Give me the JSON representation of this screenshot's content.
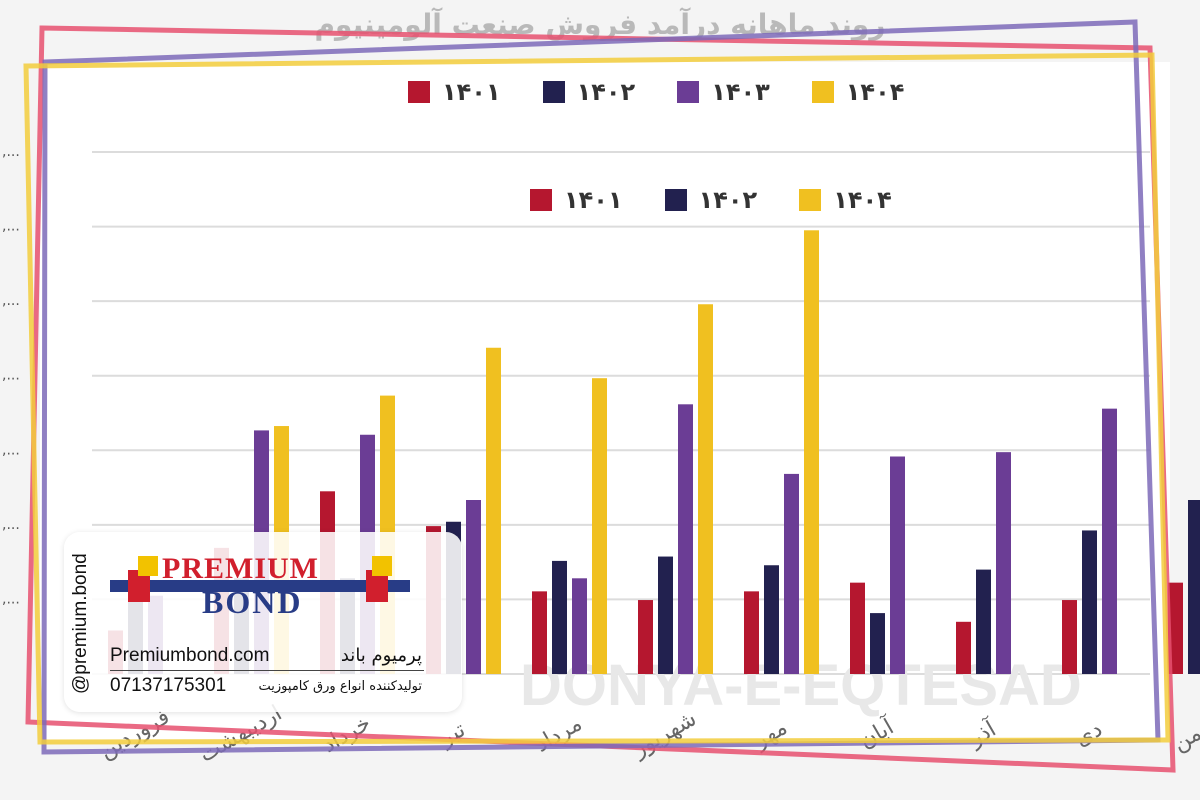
{
  "chart_data": {
    "type": "bar",
    "title": "روند ماهانه درآمد فروش صنعت آلومینیوم",
    "categories": [
      "فروردین",
      "اردیبهشت",
      "خرداد",
      "تیر",
      "مرداد",
      "شهریور",
      "مهر",
      "آبان",
      "آذر",
      "دی",
      "بهمن"
    ],
    "series": [
      {
        "name": "۱۴۰۱",
        "color": "#b5172f",
        "values": [
          10,
          29,
          42,
          34,
          19,
          17,
          19,
          21,
          12,
          17,
          21
        ]
      },
      {
        "name": "۱۴۰۲",
        "color": "#22214f",
        "values": [
          22,
          22,
          22,
          35,
          26,
          27,
          25,
          14,
          24,
          33,
          40
        ]
      },
      {
        "name": "۱۴۰۳",
        "color": "#6b3d95",
        "values": [
          18,
          56,
          55,
          40,
          22,
          62,
          46,
          50,
          51,
          61,
          null
        ]
      },
      {
        "name": "۱۴۰۴",
        "color": "#f0c020",
        "values": [
          null,
          57,
          64,
          75,
          68,
          85,
          102,
          null,
          null,
          null,
          null
        ]
      }
    ],
    "ylim": [
      0,
      120
    ],
    "grid": true,
    "legend_top": [
      "۱۴۰۱",
      "۱۴۰۲",
      "۱۴۰۳",
      "۱۴۰۴"
    ],
    "legend_second": [
      "۱۴۰۱",
      "۱۴۰۲",
      "۱۴۰۴"
    ],
    "watermark": "DONYA-E-EQTESAD"
  },
  "card": {
    "handle": "@premium.bond",
    "logo_line1": "PREMIUM",
    "logo_line2": "BOND",
    "site": "Premiumbond.com",
    "phone": "07137175301",
    "name_fa": "پرمیوم باند",
    "desc_fa": "تولیدکننده انواع ورق کامپوزیت"
  },
  "colors": {
    "frame_red": "#e6506e",
    "frame_purple": "#7d6ab8",
    "frame_yellow": "#f2cc3c"
  }
}
